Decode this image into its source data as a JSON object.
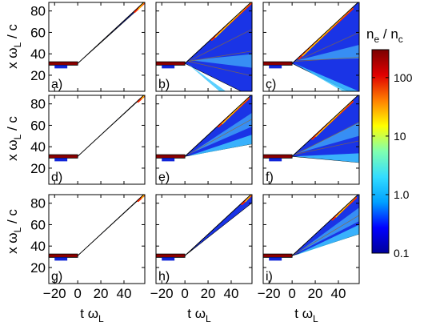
{
  "chart_data": {
    "type": "heatmap",
    "title": "",
    "xlabel": {
      "base": "t ω",
      "sub": "L"
    },
    "ylabel": {
      "base": "x ω",
      "sub": "L",
      "tail": " / c"
    },
    "xlim": [
      -25,
      58
    ],
    "ylim": [
      5,
      88
    ],
    "xticks": [
      -20,
      0,
      20,
      40
    ],
    "yticks": [
      20,
      40,
      60,
      80
    ],
    "colorbar": {
      "title": {
        "n": "n",
        "sub1": "e",
        "mid": " / n",
        "sub2": "c"
      },
      "scale": "log",
      "range": [
        0.1,
        300
      ],
      "ticks": [
        {
          "value": 100,
          "label": "100"
        },
        {
          "value": 10,
          "label": "10"
        },
        {
          "value": 1,
          "label": "1.0"
        },
        {
          "value": 0.1,
          "label": "0.1"
        }
      ],
      "stops": [
        "#00009a",
        "#0000ff",
        "#00a0ff",
        "#33ddff",
        "#80ffb0",
        "#ffff00",
        "#ff8000",
        "#e00000",
        "#7a0000"
      ]
    },
    "panels": [
      {
        "label": "a)",
        "row": 0,
        "col": 0,
        "cone_upper": 1.0,
        "cone_lower": 0.97,
        "fill": "#1024d8",
        "max_x": 57,
        "contours": [],
        "hot_region": [
          0.85,
          1.0
        ]
      },
      {
        "label": "b)",
        "row": 0,
        "col": 1,
        "cone_upper": 1.0,
        "cone_lower": -0.9,
        "fill": "#1a34e6",
        "max_x": 57,
        "contours": [
          0.55,
          0.2,
          -0.2
        ],
        "hot_region": [
          0.4,
          1.0
        ]
      },
      {
        "label": "c)",
        "row": 0,
        "col": 2,
        "cone_upper": 1.0,
        "cone_lower": -0.6,
        "fill": "#1a34e6",
        "max_x": 57,
        "contours": [
          0.5,
          0.1
        ],
        "hot_region": [
          0.1,
          0.9
        ]
      },
      {
        "label": "d)",
        "row": 1,
        "col": 0,
        "cone_upper": 1.0,
        "cone_lower": 0.99,
        "fill": "#1024d8",
        "max_x": 57,
        "contours": [],
        "hot_region": [
          0.9,
          1.0
        ]
      },
      {
        "label": "e)",
        "row": 1,
        "col": 1,
        "cone_upper": 1.0,
        "cone_lower": 0.2,
        "fill": "#1a34e6",
        "max_x": 57,
        "contours": [
          0.6
        ],
        "hot_region": [
          0.5,
          0.95
        ]
      },
      {
        "label": "f)",
        "row": 1,
        "col": 2,
        "cone_upper": 1.0,
        "cone_lower": -0.1,
        "fill": "#1a34e6",
        "max_x": 57,
        "contours": [
          0.55,
          0.25
        ],
        "hot_region": [
          0.3,
          0.9
        ]
      },
      {
        "label": "g)",
        "row": 2,
        "col": 0,
        "cone_upper": 1.0,
        "cone_lower": 0.99,
        "fill": "#1024d8",
        "max_x": 57,
        "contours": [],
        "hot_region": [
          0.9,
          1.0
        ]
      },
      {
        "label": "h)",
        "row": 2,
        "col": 1,
        "cone_upper": 1.0,
        "cone_lower": 0.85,
        "fill": "#1a34e6",
        "max_x": 57,
        "contours": [],
        "hot_region": [
          0.85,
          1.0
        ]
      },
      {
        "label": "i)",
        "row": 2,
        "col": 2,
        "cone_upper": 1.0,
        "cone_lower": 0.35,
        "fill": "#1a34e6",
        "max_x": 57,
        "contours": [
          0.65
        ],
        "hot_region": [
          0.6,
          0.95
        ]
      }
    ],
    "foil": {
      "x_value": 31,
      "t_start": -25,
      "t_end": 0
    },
    "grid": false,
    "legend": "colorbar-right"
  }
}
